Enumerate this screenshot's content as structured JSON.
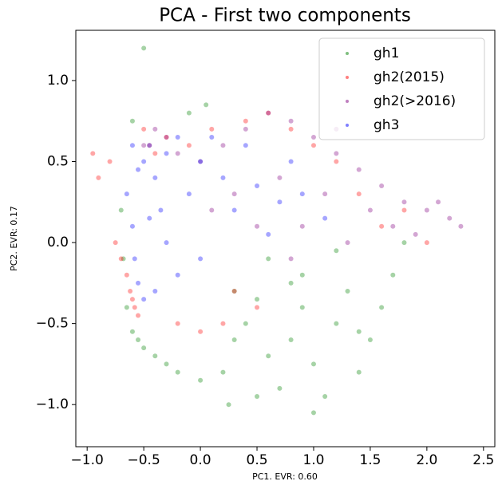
{
  "chart_data": {
    "type": "scatter",
    "title": "PCA - First two components",
    "xlabel": "PC1. EVR: 0.60",
    "ylabel": "PC2. EVR: 0.17",
    "xlim": [
      -1.1,
      2.6
    ],
    "ylim": [
      -1.26,
      1.31
    ],
    "xticks": [
      {
        "value": -1,
        "label": "−1.0"
      },
      {
        "value": -0.5,
        "label": "−0.5"
      },
      {
        "value": 0,
        "label": "0.0"
      },
      0.5,
      {
        "value": 1,
        "label": "1.0"
      },
      1.5,
      {
        "value": 2,
        "label": "2.0"
      },
      2.5
    ],
    "yticks": [
      {
        "value": -1,
        "label": "−1.0"
      },
      {
        "value": -0.5,
        "label": "−0.5"
      },
      {
        "value": 0,
        "label": "0.0"
      },
      0.5,
      {
        "value": 1,
        "label": "1.0"
      }
    ],
    "legend": "upper right",
    "series": [
      {
        "name": "gh1",
        "color": "#008000",
        "x": [
          -0.7,
          -0.68,
          -0.65,
          -0.6,
          -0.55,
          -0.5,
          -0.4,
          -0.3,
          -0.2,
          0.0,
          0.2,
          0.3,
          0.4,
          0.5,
          0.6,
          0.7,
          0.8,
          0.9,
          1.0,
          1.1,
          1.2,
          1.3,
          1.4,
          1.5,
          1.6,
          1.7,
          0.9,
          1.2,
          0.6,
          0.3,
          -0.6,
          -0.1,
          0.05,
          1.8,
          1.0,
          0.5,
          0.8,
          1.4,
          -0.5,
          0.25
        ],
        "values": [
          0.2,
          -0.1,
          -0.4,
          -0.55,
          -0.6,
          -0.65,
          -0.7,
          -0.75,
          -0.8,
          -0.85,
          -0.8,
          -0.6,
          -0.5,
          -0.35,
          -0.7,
          -0.9,
          -0.6,
          -0.4,
          -0.75,
          -0.95,
          -0.5,
          -0.3,
          -0.8,
          -0.6,
          -0.4,
          -0.2,
          -0.2,
          -0.05,
          -0.1,
          -0.3,
          0.75,
          0.8,
          0.85,
          0.0,
          -1.05,
          -0.95,
          -0.25,
          -0.55,
          1.2,
          -1.0
        ]
      },
      {
        "name": "gh2(2015)",
        "color": "#ff0000",
        "x": [
          -0.95,
          -0.9,
          -0.8,
          -0.75,
          -0.7,
          -0.65,
          -0.62,
          -0.6,
          -0.58,
          -0.55,
          -0.5,
          -0.45,
          -0.4,
          -0.2,
          0.0,
          0.2,
          0.4,
          0.6,
          0.8,
          1.0,
          1.2,
          1.4,
          1.6,
          1.8,
          2.0,
          0.5,
          0.3,
          -0.3,
          -0.1,
          0.1
        ],
        "values": [
          0.55,
          0.4,
          0.5,
          0.0,
          -0.1,
          -0.2,
          -0.3,
          -0.35,
          -0.4,
          -0.45,
          0.7,
          0.6,
          0.55,
          -0.5,
          -0.55,
          -0.5,
          0.75,
          0.8,
          0.7,
          0.6,
          0.5,
          0.3,
          0.1,
          0.2,
          0.0,
          -0.4,
          -0.3,
          0.65,
          0.6,
          0.7
        ]
      },
      {
        "name": "gh2(>2016)",
        "color": "#800080",
        "x": [
          -0.4,
          -0.3,
          -0.2,
          0.0,
          0.2,
          0.4,
          0.6,
          0.8,
          1.0,
          1.2,
          1.4,
          1.6,
          1.8,
          2.0,
          2.2,
          2.3,
          1.5,
          1.1,
          0.7,
          0.3,
          0.5,
          0.9,
          1.3,
          1.7,
          2.1,
          0.1,
          -0.5,
          0.8,
          1.2,
          1.9
        ],
        "values": [
          0.7,
          0.65,
          0.55,
          0.5,
          0.6,
          0.7,
          0.8,
          0.75,
          0.65,
          0.55,
          0.45,
          0.35,
          0.25,
          0.2,
          0.15,
          0.1,
          0.2,
          0.3,
          0.4,
          0.3,
          0.1,
          0.1,
          0.0,
          0.1,
          0.25,
          0.2,
          0.6,
          -0.1,
          0.7,
          0.05
        ]
      },
      {
        "name": "gh3",
        "color": "#0000ff",
        "x": [
          -0.65,
          -0.6,
          -0.58,
          -0.55,
          -0.5,
          -0.45,
          -0.4,
          -0.35,
          -0.3,
          -0.2,
          -0.1,
          0.0,
          0.1,
          0.2,
          0.3,
          0.5,
          0.7,
          0.9,
          1.1,
          -0.6,
          -0.5,
          -0.4,
          -0.3,
          0.4,
          0.6,
          0.8,
          -0.2,
          0.0,
          -0.55,
          -0.45
        ],
        "values": [
          0.3,
          0.1,
          -0.1,
          -0.25,
          0.5,
          0.6,
          0.4,
          0.2,
          0.0,
          -0.2,
          0.3,
          0.5,
          0.65,
          0.4,
          0.2,
          0.35,
          0.25,
          0.3,
          0.15,
          0.6,
          -0.35,
          -0.3,
          0.55,
          0.6,
          0.05,
          0.5,
          0.65,
          -0.1,
          0.45,
          0.15
        ]
      }
    ]
  }
}
